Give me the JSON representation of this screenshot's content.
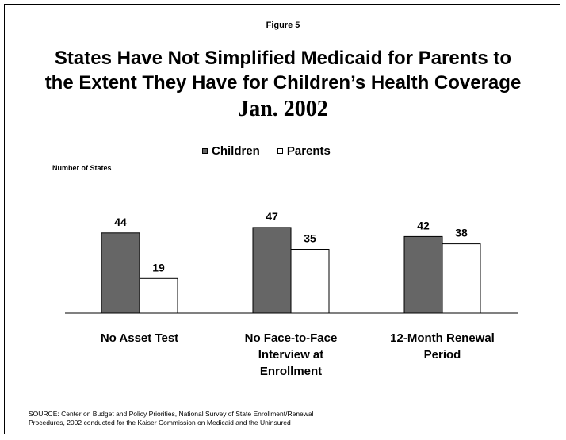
{
  "figure_label": "Figure 5",
  "title_line1": "States Have Not Simplified Medicaid for Parents to",
  "title_line2": "the Extent They Have for Children’s Health Coverage",
  "date": "Jan. 2002",
  "source_line1": "SOURCE: Center on Budget and Policy Priorities, National Survey of State Enrollment/Renewal",
  "source_line2": "Procedures, 2002 conducted for the Kaiser Commission on Medicaid and the Uninsured",
  "colors": {
    "children": "#666666",
    "parents": "#ffffff",
    "stroke": "#000000"
  },
  "chart_data": {
    "type": "bar",
    "title": "States Have Not Simplified Medicaid for Parents to the Extent They Have for Children’s Health Coverage",
    "subtitle": "Jan. 2002",
    "ylabel": "Number of States",
    "xlabel": "",
    "ylim": [
      0,
      50
    ],
    "grid": false,
    "legend_position": "top-center",
    "categories": [
      [
        "No Asset Test"
      ],
      [
        "No Face-to-Face",
        "Interview at",
        "Enrollment"
      ],
      [
        "12-Month Renewal",
        "Period"
      ]
    ],
    "series": [
      {
        "name": "Children",
        "values": [
          44,
          47,
          42
        ]
      },
      {
        "name": "Parents",
        "values": [
          19,
          35,
          38
        ]
      }
    ]
  }
}
